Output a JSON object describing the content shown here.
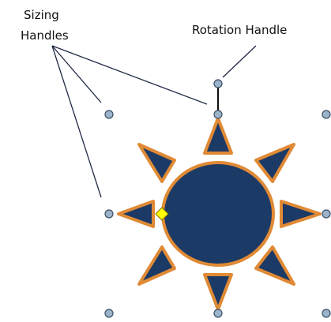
{
  "labels": {
    "sizing_line1": "Sizing",
    "sizing_line2": "Handles",
    "rotation": "Rotation Handle"
  },
  "colors": {
    "shape_fill": "#1c3a66",
    "shape_outline": "#e08a35",
    "handle_fill": "#9bb3cb",
    "handle_stroke": "#3d4f63",
    "adjust_handle_fill": "#ffff00",
    "adjust_handle_stroke": "#7a6a00",
    "leader_line": "#1f2a44"
  }
}
